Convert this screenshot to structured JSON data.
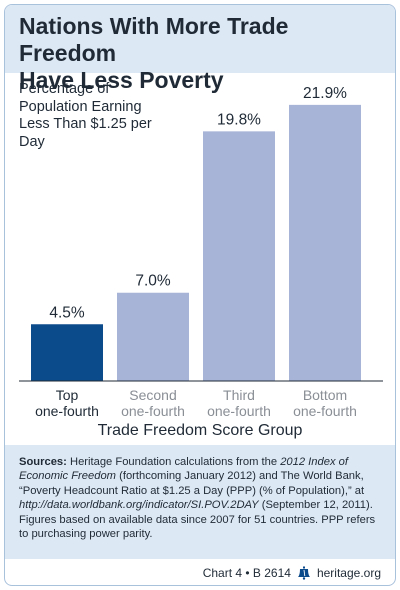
{
  "title_line1": "Nations With More Trade Freedom",
  "title_line2": "Have Less Poverty",
  "subtitle": "Percentage of Population Earning Less Than $1.25 per Day",
  "colors": {
    "highlight": "#0b4a8b",
    "bar": "#a7b4d7",
    "highlight_label": "#1f2a36",
    "muted_label": "#8a8f96",
    "panel": "#dce8f3"
  },
  "chart_data": {
    "type": "bar",
    "title": "Nations With More Trade Freedom Have Less Poverty",
    "ylabel": "Percentage of Population Earning Less Than $1.25 per Day",
    "xlabel": "Trade Freedom Score Group",
    "categories": [
      [
        "Top",
        "one-fourth"
      ],
      [
        "Second",
        "one-fourth"
      ],
      [
        "Third",
        "one-fourth"
      ],
      [
        "Bottom",
        "one-fourth"
      ]
    ],
    "values": [
      4.5,
      7.0,
      19.8,
      21.9
    ],
    "value_labels": [
      "4.5%",
      "7.0%",
      "19.8%",
      "21.9%"
    ],
    "highlighted_index": 0,
    "ylim": [
      0,
      23
    ],
    "grid": false
  },
  "sources": {
    "label": "Sources:",
    "part1": " Heritage Foundation calculations from the ",
    "italic1": "2012 Index of Economic Freedom",
    "part2": " (forthcoming January 2012) and The World Bank, “Poverty Headcount Ratio at $1.25 a Day (PPP) (% of Population),” at ",
    "italic2": "http://data.worldbank.org/indicator/SI.POV.2DAY",
    "part3": " (September 12, 2011). Figures based on available data since 2007 for 51 countries. PPP refers to purchasing power parity."
  },
  "footer": {
    "chart_ref": "Chart 4 • B 2614",
    "site": "heritage.org",
    "logo_icon": "liberty-bell-icon"
  }
}
